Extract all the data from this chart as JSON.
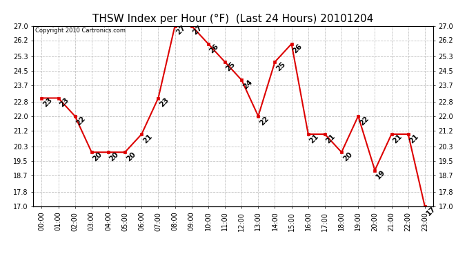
{
  "title": "THSW Index per Hour (°F)  (Last 24 Hours) 20101204",
  "copyright": "Copyright 2010 Cartronics.com",
  "hours": [
    "00:00",
    "01:00",
    "02:00",
    "03:00",
    "04:00",
    "05:00",
    "06:00",
    "07:00",
    "08:00",
    "09:00",
    "10:00",
    "11:00",
    "12:00",
    "13:00",
    "14:00",
    "15:00",
    "16:00",
    "17:00",
    "18:00",
    "19:00",
    "20:00",
    "21:00",
    "22:00",
    "23:00"
  ],
  "values": [
    23,
    23,
    22,
    20,
    20,
    20,
    21,
    23,
    27,
    27,
    26,
    25,
    24,
    22,
    25,
    26,
    21,
    21,
    20,
    22,
    19,
    21,
    21,
    17
  ],
  "ylim_min": 17.0,
  "ylim_max": 27.0,
  "yticks": [
    17.0,
    17.8,
    18.7,
    19.5,
    20.3,
    21.2,
    22.0,
    22.8,
    23.7,
    24.5,
    25.3,
    26.2,
    27.0
  ],
  "line_color": "#dd0000",
  "marker_color": "#dd0000",
  "bg_color": "#ffffff",
  "grid_color": "#bbbbbb",
  "title_fontsize": 11,
  "label_fontsize": 7,
  "annotation_fontsize": 7.5
}
